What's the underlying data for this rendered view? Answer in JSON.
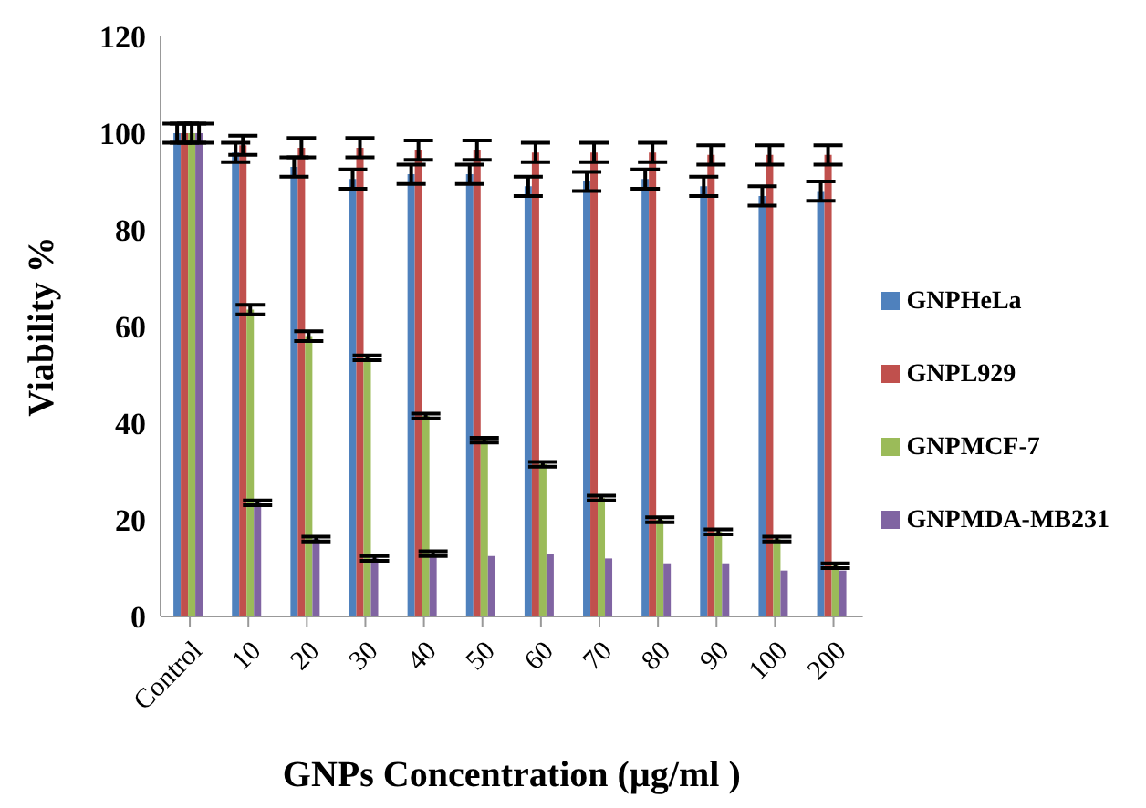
{
  "chart_data": {
    "type": "bar",
    "xlabel": "GNPs Concentration (µg/ml )",
    "ylabel": "Viability %",
    "categories": [
      "Control",
      "10",
      "20",
      "30",
      "40",
      "50",
      "60",
      "70",
      "80",
      "90",
      "100",
      "200"
    ],
    "series": [
      {
        "name": "GNPHeLa",
        "color": "#4f81bd",
        "values": [
          100,
          96,
          93,
          90.5,
          91.5,
          91.5,
          89,
          90,
          90.5,
          89,
          87,
          88
        ],
        "errors": [
          2,
          2,
          2,
          2,
          2,
          2,
          2,
          2,
          2,
          2,
          2,
          2
        ]
      },
      {
        "name": "GNPL929",
        "color": "#c0504d",
        "values": [
          100,
          97.5,
          97,
          97,
          96.5,
          96.5,
          96,
          96,
          96,
          95.5,
          95.5,
          95.5
        ],
        "errors": [
          2,
          2,
          2,
          2,
          2,
          2,
          2,
          2,
          2,
          2,
          2,
          2
        ]
      },
      {
        "name": "GNPMCF-7",
        "color": "#9bbb59",
        "values": [
          100,
          63.5,
          58,
          53.5,
          41.5,
          36.5,
          31.5,
          24.5,
          20,
          17.5,
          16,
          10.5
        ],
        "errors": [
          2,
          1,
          1,
          0.5,
          0.5,
          0.5,
          0.5,
          0.5,
          0.5,
          0.5,
          0.5,
          0.5
        ]
      },
      {
        "name": "GNPMDA-MB231",
        "color": "#8064a2",
        "values": [
          100,
          23.5,
          16,
          12,
          13,
          12.5,
          13,
          12,
          11,
          11,
          9.5,
          9.5
        ],
        "errors": [
          2,
          0.5,
          0.5,
          0.5,
          0.5,
          null,
          null,
          null,
          null,
          null,
          null,
          null
        ]
      }
    ],
    "ylim": [
      0,
      120
    ],
    "yticks": [
      0,
      20,
      40,
      60,
      80,
      100,
      120
    ],
    "grid": false,
    "legend": "right"
  }
}
